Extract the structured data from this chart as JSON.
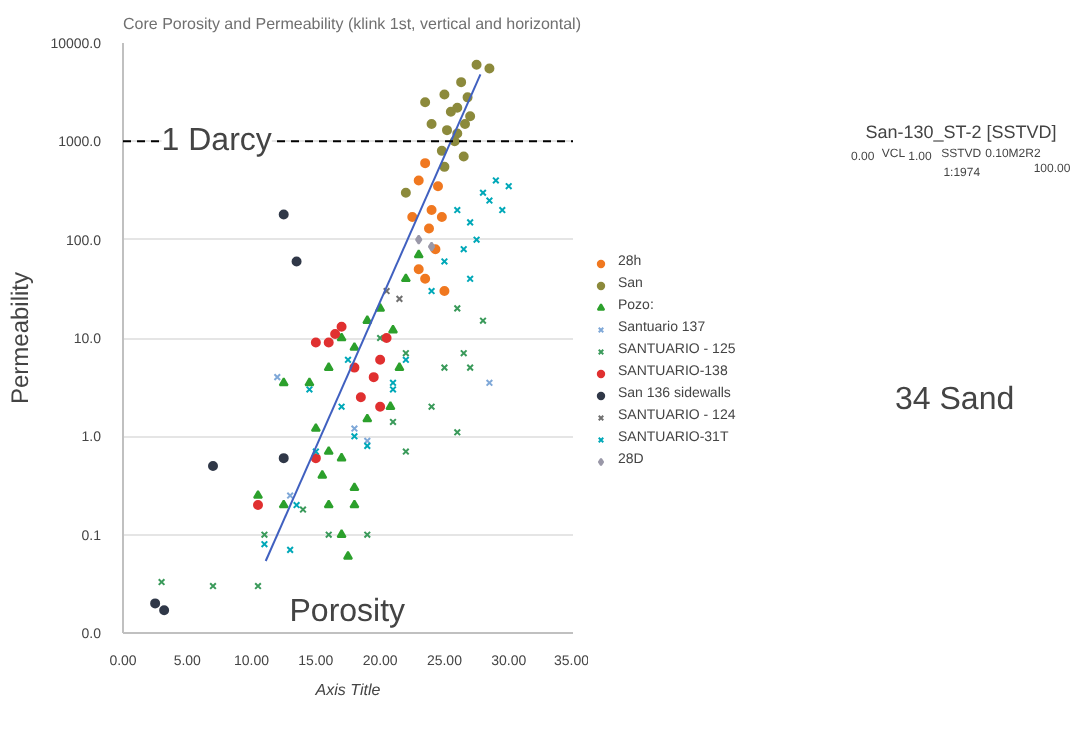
{
  "chart_data": {
    "type": "scatter",
    "title": "Core Porosity and Permeability (klink 1st, vertical and horizontal)",
    "xlabel": "Axis Title",
    "ylabel": "Permeability",
    "log": "y",
    "grid": "y",
    "legend": "right",
    "xlim": [
      0,
      35
    ],
    "xticks": [
      {
        "value": 0,
        "label": "0.00"
      },
      {
        "value": 5,
        "label": "5.00"
      },
      {
        "value": 10,
        "label": "10.00"
      },
      {
        "value": 15,
        "label": "15.00"
      },
      {
        "value": 20,
        "label": "20.00"
      },
      {
        "value": 25,
        "label": "25.00"
      },
      {
        "value": 30,
        "label": "30.00"
      },
      {
        "value": 35,
        "label": "35.00"
      }
    ],
    "ylim": [
      0.01,
      10000
    ],
    "yticks": [
      {
        "value": 0.01,
        "label": "0.0"
      },
      {
        "value": 0.1,
        "label": "0.1"
      },
      {
        "value": 1,
        "label": "1.0"
      },
      {
        "value": 10,
        "label": "10.0"
      },
      {
        "value": 100,
        "label": "100.0"
      },
      {
        "value": 1000,
        "label": "1000.0"
      },
      {
        "value": 10000,
        "label": "10000.0"
      }
    ],
    "ref_lines": [
      {
        "axis": "y",
        "value": 1000,
        "label": "1 Darcy",
        "color": "#000000",
        "line_style": "dashed"
      }
    ],
    "annotations": [
      "Porosity",
      "San-130_ST-2 [SSTVD]",
      "0.00",
      "VCL",
      "1.00",
      "SSTVD",
      "0.10M2R2",
      "100.00",
      "1:1974",
      "34 Sand"
    ],
    "series": [
      {
        "name": "28h",
        "color": "#f07820",
        "marker": "circle",
        "x": [
          23,
          23.5,
          24.5,
          24,
          23.8,
          24.3,
          22.5,
          23,
          24.8,
          23.5,
          25
        ],
        "values": [
          400,
          600,
          350,
          200,
          130,
          80,
          170,
          50,
          170,
          40,
          30
        ]
      },
      {
        "name": "San",
        "color": "#8c8a3c",
        "marker": "circle",
        "x": [
          23.5,
          24,
          25,
          25.5,
          26,
          26.3,
          26.8,
          27,
          25.8,
          26.5,
          27.5,
          24.8,
          25.2,
          26,
          28.5,
          22,
          25,
          26.6
        ],
        "values": [
          2500,
          1500,
          3000,
          2000,
          1200,
          4000,
          2800,
          1800,
          1000,
          700,
          6000,
          800,
          1300,
          2200,
          5500,
          300,
          550,
          1500
        ]
      },
      {
        "name": "Pozo:",
        "color": "#2ca02c",
        "marker": "triangle",
        "x": [
          17,
          18,
          19,
          16,
          15,
          16,
          15.5,
          17,
          18,
          19,
          20.8,
          14.5,
          12.5,
          16,
          17,
          18,
          17.5,
          10.5,
          12.5,
          20,
          21,
          22,
          23,
          21.5
        ],
        "values": [
          10,
          8,
          15,
          5,
          1.2,
          0.7,
          0.4,
          0.6,
          0.3,
          1.5,
          2,
          3.5,
          3.5,
          0.2,
          0.1,
          0.2,
          0.06,
          0.25,
          0.2,
          20,
          12,
          40,
          70,
          5
        ]
      },
      {
        "name": "Santuario 137",
        "color": "#7fa8d8",
        "marker": "cross",
        "x": [
          12,
          13,
          18,
          19,
          28.5
        ],
        "values": [
          4,
          0.25,
          1.2,
          0.9,
          3.5
        ]
      },
      {
        "name": "SANTUARIO - 125",
        "color": "#3a9a5a",
        "marker": "cross",
        "x": [
          20,
          22,
          25,
          26,
          24,
          26.5,
          27,
          22,
          21,
          19,
          16,
          7,
          10.5,
          3,
          11,
          14,
          26,
          28
        ],
        "values": [
          10,
          7,
          5,
          1.1,
          2,
          7,
          5,
          0.7,
          1.4,
          0.1,
          0.1,
          0.03,
          0.03,
          0.033,
          0.1,
          0.18,
          20,
          15
        ]
      },
      {
        "name": "SANTUARIO-138",
        "color": "#e03030",
        "marker": "circle",
        "x": [
          18,
          19.5,
          20,
          20.5,
          17,
          15,
          10.5,
          18.5,
          20,
          16,
          16.5,
          15
        ],
        "values": [
          5,
          4,
          6,
          10,
          13,
          0.6,
          0.2,
          2.5,
          2,
          9,
          11,
          9
        ]
      },
      {
        "name": "San 136 sidewalls",
        "color": "#303848",
        "marker": "circle",
        "x": [
          12.5,
          13.5,
          7,
          12.5,
          2.5,
          3.2
        ],
        "values": [
          180,
          60,
          0.5,
          0.6,
          0.02,
          0.017
        ]
      },
      {
        "name": "SANTUARIO - 124",
        "color": "#707070",
        "marker": "cross",
        "x": [
          20.5,
          21.5
        ],
        "values": [
          30,
          25
        ]
      },
      {
        "name": "SANTUARIO-31T",
        "color": "#00a8b8",
        "marker": "cross",
        "x": [
          26,
          27,
          28,
          29,
          27.5,
          28.5,
          26.5,
          25,
          29.5,
          30,
          27,
          24,
          14.5,
          15,
          17,
          18,
          19,
          21,
          13.5,
          13,
          11,
          17.5,
          22,
          21
        ],
        "values": [
          200,
          150,
          300,
          400,
          100,
          250,
          80,
          60,
          200,
          350,
          40,
          30,
          3,
          0.7,
          2,
          1,
          0.8,
          3,
          0.2,
          0.07,
          0.08,
          6,
          6,
          3.5
        ]
      },
      {
        "name": "28D",
        "color": "#9a98a8",
        "marker": "diamond",
        "x": [
          23,
          24
        ],
        "values": [
          100,
          85
        ]
      },
      {
        "type": "line",
        "color": "#4060c0",
        "marker": "none",
        "x": [
          11.1,
          27.8
        ],
        "values": [
          0.054,
          4800
        ]
      }
    ]
  }
}
